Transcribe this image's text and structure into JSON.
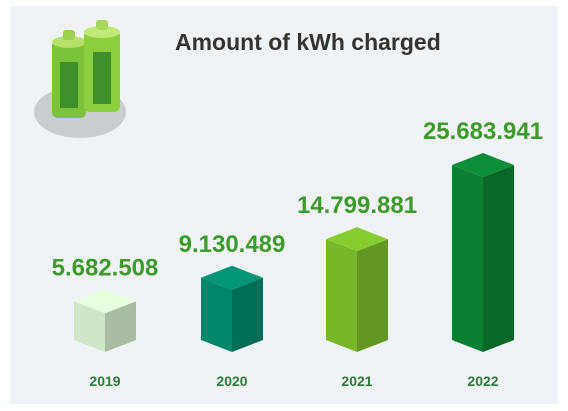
{
  "chart_data": {
    "type": "bar3d",
    "title": "Amount of kWh charged",
    "categories": [
      "2019",
      "2020",
      "2021",
      "2022"
    ],
    "values": [
      5682508,
      9130489,
      14799881,
      25683941
    ],
    "value_labels": [
      "5.682.508",
      "9.130.489",
      "14.799.881",
      "25.683.941"
    ],
    "colors": [
      "#cfe7c6",
      "#00866a",
      "#79b72a",
      "#0b7f32"
    ]
  }
}
